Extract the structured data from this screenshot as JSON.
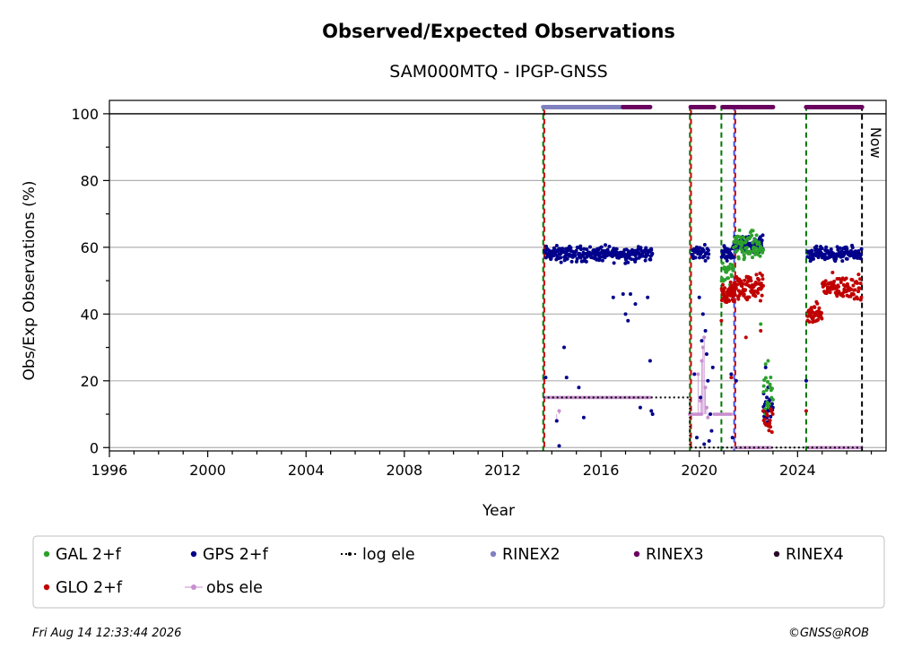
{
  "footer": {
    "timestamp": "Fri Aug 14 12:33:44 2026",
    "credit": "©GNSS@ROB"
  },
  "chart_data": {
    "type": "scatter",
    "title": "Observed/Expected Observations",
    "subtitle": "SAM000MTQ - IPGP-GNSS",
    "xlabel": "Year",
    "ylabel": "Obs/Exp Observations (%)",
    "xlim": [
      1996,
      2027.6
    ],
    "ylim": [
      -1,
      104
    ],
    "x_ticks": [
      1996,
      2000,
      2004,
      2008,
      2012,
      2016,
      2020,
      2024
    ],
    "x_tick_labels": [
      "1996",
      "2000",
      "2004",
      "2008",
      "2012",
      "2016",
      "2020",
      "2024"
    ],
    "y_ticks": [
      0,
      20,
      40,
      60,
      80,
      100
    ],
    "y_tick_labels": [
      "0",
      "20",
      "40",
      "60",
      "80",
      "100"
    ],
    "grid": "horizontal",
    "now_label": "Now",
    "now_x": 2026.62,
    "colors": {
      "gal": "#2ca02c",
      "gps": "#00008b",
      "glo": "#c00000",
      "log_ele": "#000000",
      "obs_ele": "#c88fcf",
      "rinex2": "#8080c0",
      "rinex3": "#6a005f",
      "rinex4": "#2a0a2a",
      "event_green": "#007700",
      "event_red": "#cc0000",
      "event_blue": "#3355ff",
      "grid": "#b0b0b0"
    },
    "legend": {
      "placement": "bottom",
      "entries": [
        {
          "key": "gal",
          "label": "GAL 2+f"
        },
        {
          "key": "gps",
          "label": "GPS 2+f"
        },
        {
          "key": "log_ele",
          "label": "log ele"
        },
        {
          "key": "rinex2",
          "label": "RINEX2"
        },
        {
          "key": "rinex3",
          "label": "RINEX3"
        },
        {
          "key": "rinex4",
          "label": "RINEX4"
        },
        {
          "key": "glo",
          "label": "GLO 2+f"
        },
        {
          "key": "obs_ele",
          "label": "obs ele"
        }
      ]
    },
    "event_lines": [
      {
        "x": 2013.65,
        "colors": [
          "event_green",
          "event_red"
        ]
      },
      {
        "x": 2019.62,
        "colors": [
          "event_green",
          "event_red"
        ]
      },
      {
        "x": 2020.9,
        "colors": [
          "event_green"
        ]
      },
      {
        "x": 2021.42,
        "colors": [
          "event_blue",
          "event_red"
        ]
      },
      {
        "x": 2024.35,
        "colors": [
          "event_green"
        ]
      }
    ],
    "rinex_bars": [
      {
        "series": "rinex2",
        "start": 2013.65,
        "end": 2016.9,
        "y": 102
      },
      {
        "series": "rinex3",
        "start": 2016.9,
        "end": 2018.0,
        "y": 102
      },
      {
        "series": "rinex3",
        "start": 2019.65,
        "end": 2020.6,
        "y": 102
      },
      {
        "series": "rinex3",
        "start": 2020.95,
        "end": 2023.0,
        "y": 102
      },
      {
        "series": "rinex3",
        "start": 2024.35,
        "end": 2026.62,
        "y": 102
      }
    ],
    "log_ele": {
      "x": [
        2013.65,
        2019.62,
        2019.62,
        2026.62
      ],
      "y": [
        15,
        15,
        0,
        0
      ]
    },
    "series": [
      {
        "key": "gps",
        "name": "GPS 2+f",
        "clusters": [
          {
            "start": 2013.7,
            "end": 2018.1,
            "center": 58,
            "spread": 1.6,
            "n": 260
          },
          {
            "start": 2019.7,
            "end": 2020.4,
            "center": 58.5,
            "spread": 1.4,
            "n": 35
          },
          {
            "start": 2020.9,
            "end": 2021.4,
            "center": 58.5,
            "spread": 1.5,
            "n": 30
          },
          {
            "start": 2021.4,
            "end": 2022.6,
            "center": 61,
            "spread": 1.6,
            "n": 80
          },
          {
            "start": 2022.6,
            "end": 2023.0,
            "center": 12,
            "spread": 3,
            "n": 25
          },
          {
            "start": 2024.4,
            "end": 2026.6,
            "center": 58,
            "spread": 1.4,
            "n": 140
          }
        ],
        "points": [
          [
            2013.75,
            21
          ],
          [
            2014.2,
            8
          ],
          [
            2014.3,
            0.5
          ],
          [
            2014.5,
            30
          ],
          [
            2014.6,
            21
          ],
          [
            2015.1,
            18
          ],
          [
            2015.3,
            9
          ],
          [
            2016.5,
            45
          ],
          [
            2016.9,
            46
          ],
          [
            2017.0,
            40
          ],
          [
            2017.1,
            38
          ],
          [
            2017.2,
            46
          ],
          [
            2017.4,
            43
          ],
          [
            2017.6,
            12
          ],
          [
            2017.9,
            45
          ],
          [
            2018.0,
            26
          ],
          [
            2018.05,
            11
          ],
          [
            2018.1,
            10
          ],
          [
            2019.8,
            22
          ],
          [
            2019.9,
            3
          ],
          [
            2020.0,
            45
          ],
          [
            2020.05,
            15
          ],
          [
            2020.1,
            32
          ],
          [
            2020.15,
            40
          ],
          [
            2020.2,
            1
          ],
          [
            2020.25,
            35
          ],
          [
            2020.3,
            28
          ],
          [
            2020.35,
            20
          ],
          [
            2020.4,
            2
          ],
          [
            2020.45,
            10
          ],
          [
            2020.5,
            5
          ],
          [
            2020.55,
            24
          ],
          [
            2021.3,
            22
          ],
          [
            2021.35,
            3
          ],
          [
            2021.5,
            20
          ],
          [
            2022.7,
            24
          ],
          [
            2022.75,
            15
          ],
          [
            2022.8,
            18
          ],
          [
            2022.85,
            8
          ],
          [
            2024.35,
            20
          ]
        ]
      },
      {
        "key": "gal",
        "name": "GAL 2+f",
        "clusters": [
          {
            "start": 2020.9,
            "end": 2021.4,
            "center": 52,
            "spread": 2.5,
            "n": 25
          },
          {
            "start": 2021.4,
            "end": 2022.6,
            "center": 60,
            "spread": 3.2,
            "n": 80
          },
          {
            "start": 2022.6,
            "end": 2023.0,
            "center": 14,
            "spread": 5,
            "n": 20
          }
        ],
        "points": [
          [
            2022.5,
            37
          ],
          [
            2022.7,
            25
          ],
          [
            2022.8,
            26
          ]
        ]
      },
      {
        "key": "glo",
        "name": "GLO 2+f",
        "clusters": [
          {
            "start": 2020.9,
            "end": 2021.4,
            "center": 46,
            "spread": 2.5,
            "n": 40
          },
          {
            "start": 2021.4,
            "end": 2022.6,
            "center": 48,
            "spread": 2.8,
            "n": 90
          },
          {
            "start": 2022.6,
            "end": 2023.0,
            "center": 8,
            "spread": 3,
            "n": 18
          },
          {
            "start": 2024.4,
            "end": 2025.0,
            "center": 40,
            "spread": 2,
            "n": 45
          },
          {
            "start": 2025.0,
            "end": 2026.6,
            "center": 48,
            "spread": 2.5,
            "n": 100
          }
        ],
        "points": [
          [
            2020.9,
            38
          ],
          [
            2021.3,
            21
          ],
          [
            2022.5,
            35
          ],
          [
            2024.35,
            11
          ],
          [
            2021.9,
            33
          ]
        ]
      },
      {
        "key": "obs_ele",
        "name": "obs ele",
        "segments": [
          {
            "start": 2013.7,
            "end": 2018.0,
            "y": 15
          },
          {
            "start": 2019.6,
            "end": 2020.1,
            "y": 10
          },
          {
            "start": 2020.6,
            "end": 2021.3,
            "y": 10
          },
          {
            "start": 2021.45,
            "end": 2022.9,
            "y": 0
          },
          {
            "start": 2024.45,
            "end": 2026.55,
            "y": 0
          }
        ],
        "points": [
          [
            2014.2,
            8
          ],
          [
            2014.3,
            11
          ],
          [
            2019.95,
            22
          ],
          [
            2020.05,
            14
          ],
          [
            2020.1,
            26
          ],
          [
            2020.15,
            30
          ],
          [
            2020.2,
            33
          ],
          [
            2020.25,
            18
          ],
          [
            2020.3,
            12
          ],
          [
            2020.35,
            9
          ]
        ]
      }
    ]
  }
}
